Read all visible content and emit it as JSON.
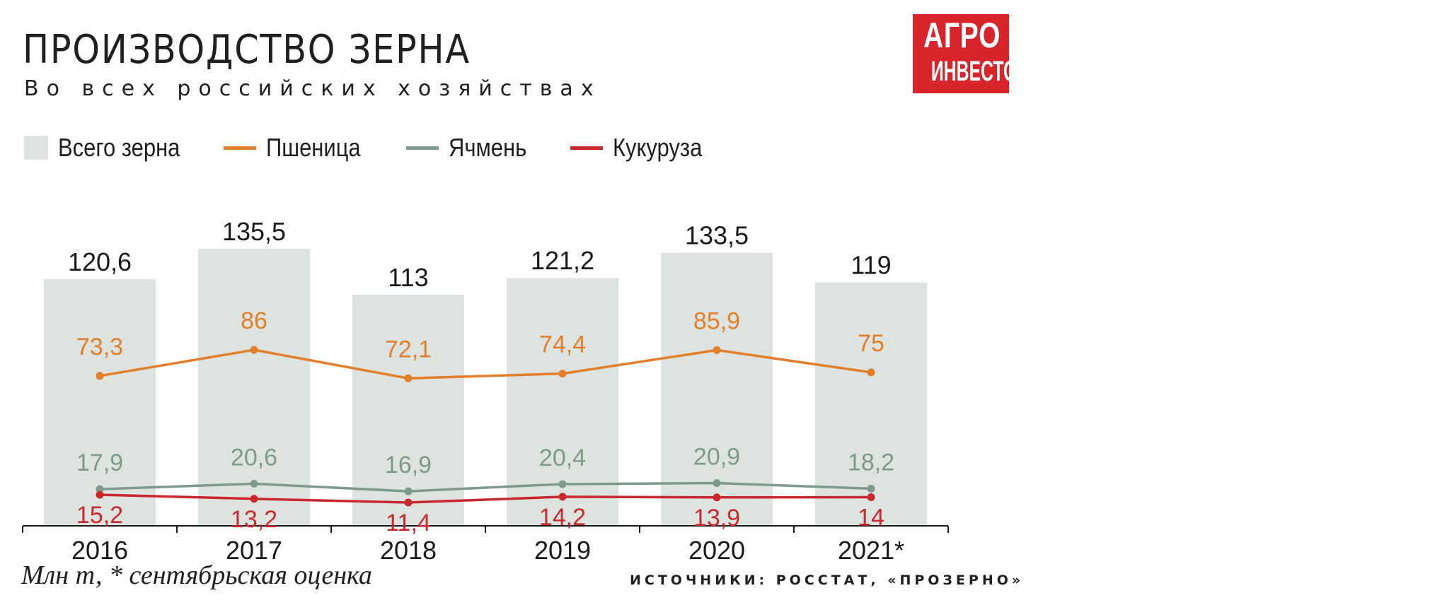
{
  "header": {
    "title": "ПРОИЗВОДСТВО ЗЕРНА",
    "subtitle": "Во всех российских хозяйствах"
  },
  "logo": {
    "line1": "АГРО",
    "line2": "ИНВЕСТОР",
    "color": "#d8242b"
  },
  "legend": {
    "total": "Всего зерна",
    "wheat": "Пшеница",
    "barley": "Ячмень",
    "corn": "Кукуруза"
  },
  "colors": {
    "bar": "#dde3df",
    "wheat": "#e37f2a",
    "barley": "#7d9a8c",
    "corn": "#c8282e",
    "axis": "#1a1a1a"
  },
  "chart_data": {
    "type": "bar",
    "categories": [
      "2016",
      "2017",
      "2018",
      "2019",
      "2020",
      "2021*"
    ],
    "ylim": [
      0,
      190
    ],
    "bars": {
      "name": "Всего зерна",
      "values": [
        120.6,
        135.5,
        113,
        121.2,
        133.5,
        119
      ],
      "labels": [
        "120,6",
        "135,5",
        "113",
        "121,2",
        "133,5",
        "119"
      ]
    },
    "series": [
      {
        "name": "Пшеница",
        "type": "line",
        "values": [
          73.3,
          86,
          72.1,
          74.4,
          85.9,
          75
        ],
        "labels": [
          "73,3",
          "86",
          "72,1",
          "74,4",
          "85,9",
          "75"
        ]
      },
      {
        "name": "Ячмень",
        "type": "line",
        "values": [
          17.9,
          20.6,
          16.9,
          20.4,
          20.9,
          18.2
        ],
        "labels": [
          "17,9",
          "20,6",
          "16,9",
          "20,4",
          "20,9",
          "18,2"
        ]
      },
      {
        "name": "Кукуруза",
        "type": "line",
        "values": [
          15.2,
          13.2,
          11.4,
          14.2,
          13.9,
          14
        ],
        "labels": [
          "15,2",
          "13,2",
          "11,4",
          "14,2",
          "13,9",
          "14"
        ]
      }
    ],
    "grid": false,
    "legend_position": "top-left"
  },
  "footer": {
    "note": "Млн т, * сентябрьская оценка",
    "sources": "ИСТОЧНИКИ: РОССТАТ, «ПРОЗЕРНО»"
  }
}
